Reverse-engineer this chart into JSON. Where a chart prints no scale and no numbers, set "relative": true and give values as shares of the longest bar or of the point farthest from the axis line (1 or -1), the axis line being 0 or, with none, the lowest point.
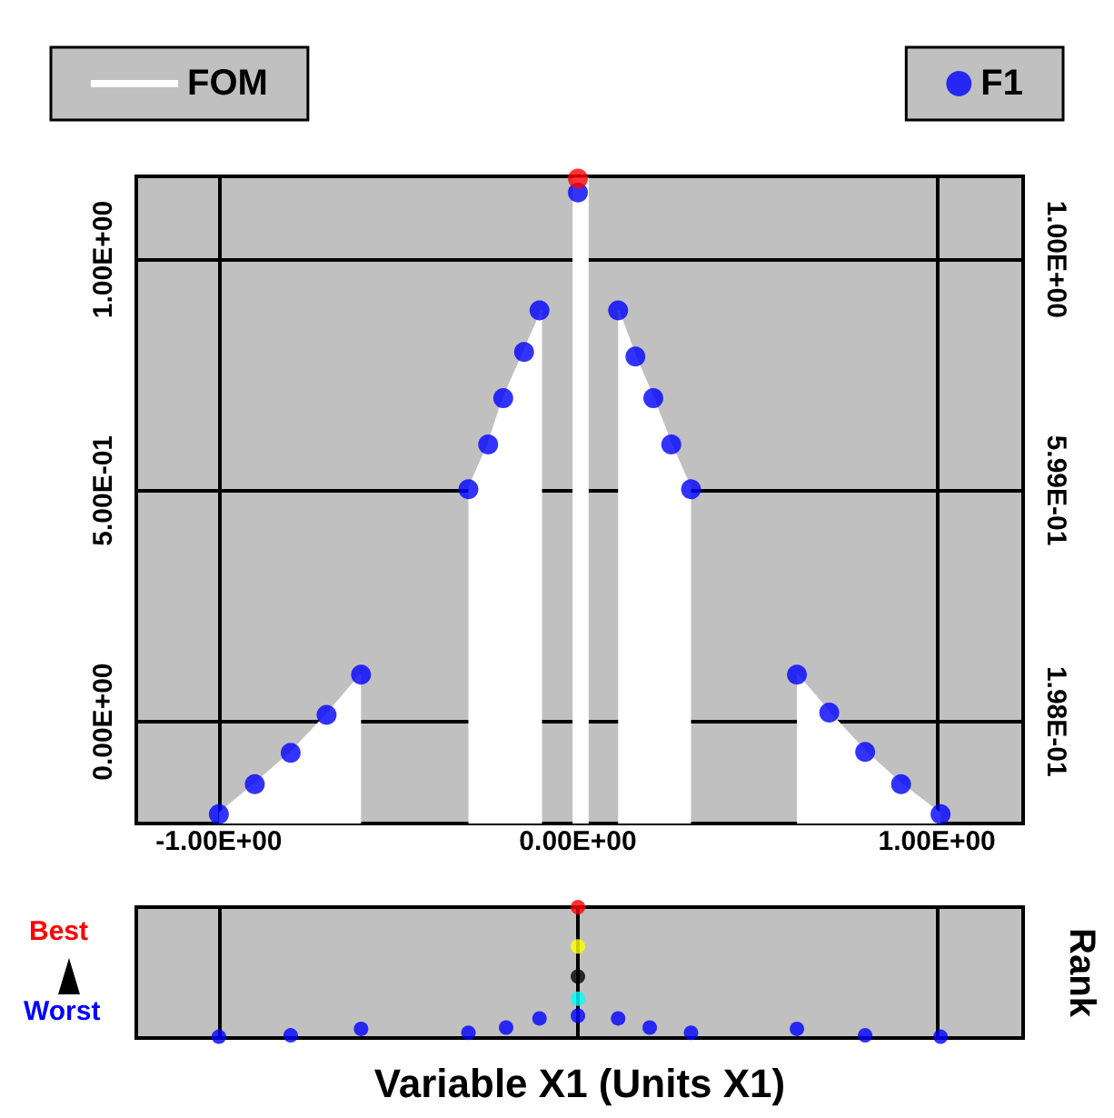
{
  "chart_data": [
    {
      "type": "scatter",
      "legend": "top",
      "grid": true,
      "xlim": [
        -1.23,
        1.24
      ],
      "xticks": [
        {
          "value": -1,
          "label": "-1.00E+00"
        },
        {
          "value": 0,
          "label": "0.00E+00"
        },
        {
          "value": 1,
          "label": "1.00E+00"
        }
      ],
      "ylim": [
        -0.22,
        1.18
      ],
      "yticks": [
        {
          "value": 0,
          "label": "0.00E+00"
        },
        {
          "value": 0.5,
          "label": "5.00E-01"
        },
        {
          "value": 1,
          "label": "1.00E+00"
        }
      ],
      "y2lim": [
        0.021,
        1.144
      ],
      "y2ticks": [
        {
          "value": 0.198,
          "label": "1.98E-01"
        },
        {
          "value": 0.599,
          "label": "5.99E-01"
        },
        {
          "value": 1,
          "label": "1.00E+00"
        }
      ],
      "series": [
        {
          "name": "FOM",
          "type": "area",
          "axis": "y2",
          "color": "#ffffff",
          "x": [
            -1.0,
            -0.9,
            -0.8,
            -0.7,
            -0.604,
            -0.45,
            -0.305,
            -0.25,
            -0.208,
            -0.15,
            -0.1,
            -0.06,
            -0.015,
            0.03,
            0.07,
            0.112,
            0.16,
            0.21,
            0.26,
            0.315,
            0.45,
            0.61,
            0.7,
            0.8,
            0.9,
            1.01
          ],
          "values": [
            0.038,
            0.09,
            0.144,
            0.21,
            0.28,
            null,
            0.601,
            0.679,
            0.759,
            0.84,
            0.912,
            null,
            1.14,
            1.14,
            null,
            0.912,
            0.832,
            0.759,
            0.679,
            0.601,
            null,
            0.28,
            0.214,
            0.146,
            0.09,
            0.038
          ]
        },
        {
          "name": "F1",
          "marker": "circle",
          "color": "#0000ff",
          "x": [
            -1.0,
            -0.9,
            -0.8,
            -0.7,
            -0.604,
            -0.305,
            -0.25,
            -0.208,
            -0.15,
            -0.107,
            0,
            0,
            0.112,
            0.16,
            0.21,
            0.26,
            0.315,
            0.61,
            0.7,
            0.8,
            0.9,
            1.01
          ],
          "values": [
            -0.2,
            -0.135,
            -0.067,
            0.015,
            0.102,
            0.503,
            0.6,
            0.7,
            0.8,
            0.89,
            1.145,
            1.175,
            0.89,
            0.79,
            0.7,
            0.6,
            0.503,
            0.102,
            0.02,
            -0.065,
            -0.135,
            -0.2
          ],
          "colors": [
            "#0000ff",
            "#0000ff",
            "#0000ff",
            "#0000ff",
            "#0000ff",
            "#0000ff",
            "#0000ff",
            "#0000ff",
            "#0000ff",
            "#0000ff",
            "#0000ff",
            "#ff0000",
            "#0000ff",
            "#0000ff",
            "#0000ff",
            "#0000ff",
            "#0000ff",
            "#0000ff",
            "#0000ff",
            "#0000ff",
            "#0000ff",
            "#0000ff"
          ]
        }
      ]
    },
    {
      "type": "scatter",
      "relative": true,
      "grid": "x",
      "tick_labels": false,
      "xlabel": "Variable X1 (Units X1)",
      "ylabel": "Rank",
      "annotations": [
        "Best",
        "Worst"
      ],
      "xlim": [
        -1.23,
        1.24
      ],
      "xticks": [
        {
          "value": -1,
          "label": null
        },
        {
          "value": 0,
          "label": null
        },
        {
          "value": 1,
          "label": null
        }
      ],
      "series": [
        {
          "marker": "circle",
          "color": "#0000ff",
          "x": [
            -1.0,
            -0.8,
            -0.604,
            -0.305,
            -0.2,
            -0.107,
            0,
            0,
            0,
            0,
            0,
            0.112,
            0.2,
            0.315,
            0.61,
            0.8,
            1.01
          ],
          "values": [
            0.01,
            0.02,
            0.07,
            0.04,
            0.08,
            0.15,
            0.17,
            0.3,
            0.47,
            0.7,
            1.0,
            0.15,
            0.08,
            0.04,
            0.07,
            0.02,
            0.01
          ],
          "colors": [
            "#0000ff",
            "#0000ff",
            "#0000ff",
            "#0000ff",
            "#0000ff",
            "#0000ff",
            "#0000ff",
            "#00ffff",
            "#000000",
            "#ffff00",
            "#ff0000",
            "#0000ff",
            "#0000ff",
            "#0000ff",
            "#0000ff",
            "#0000ff",
            "#0000ff"
          ]
        }
      ]
    }
  ]
}
